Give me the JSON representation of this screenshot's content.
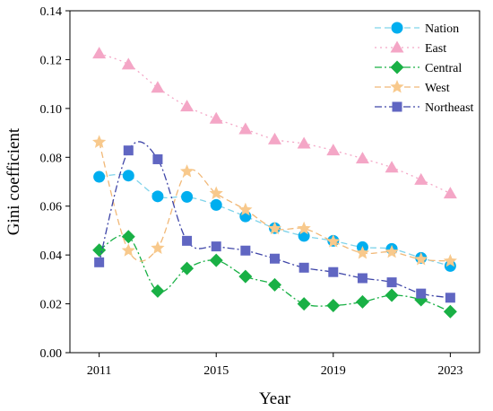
{
  "chart_data": {
    "type": "line",
    "xlabel": "Year",
    "ylabel": "Gini coefficient",
    "xlim": [
      2010,
      2024
    ],
    "ylim": [
      0,
      0.14
    ],
    "x_ticks": [
      "2011",
      "2015",
      "2019",
      "2023"
    ],
    "y_ticks": [
      "0.00",
      "0.02",
      "0.04",
      "0.06",
      "0.08",
      "0.10",
      "0.12",
      "0.14"
    ],
    "grid": false,
    "legend_position": "top-right",
    "x": [
      2011,
      2012,
      2013,
      2014,
      2015,
      2016,
      2017,
      2018,
      2019,
      2020,
      2021,
      2022,
      2023
    ],
    "series": [
      {
        "name": "Nation",
        "marker": "circle",
        "line_style": "dashed",
        "color": "#00aeef",
        "line_color": "#7fd3ea",
        "values": [
          0.072,
          0.0725,
          0.064,
          0.0638,
          0.0605,
          0.0558,
          0.051,
          0.0478,
          0.0458,
          0.0432,
          0.0425,
          0.0388,
          0.0355
        ]
      },
      {
        "name": "East",
        "marker": "triangle",
        "line_style": "dotted",
        "color": "#f4a6c6",
        "line_color": "#f4a6c6",
        "values": [
          0.1225,
          0.118,
          0.1085,
          0.1008,
          0.0958,
          0.0915,
          0.0873,
          0.0856,
          0.0828,
          0.0795,
          0.0758,
          0.0708,
          0.0652
        ]
      },
      {
        "name": "Central",
        "marker": "diamond",
        "line_style": "dash-dot",
        "color": "#19b045",
        "line_color": "#19b045",
        "values": [
          0.042,
          0.0475,
          0.0252,
          0.0345,
          0.0378,
          0.0312,
          0.0278,
          0.02,
          0.0193,
          0.0208,
          0.0235,
          0.0217,
          0.0168
        ]
      },
      {
        "name": "West",
        "marker": "star",
        "line_style": "dashed",
        "color": "#f8c98c",
        "line_color": "#f1b877",
        "values": [
          0.0862,
          0.0418,
          0.0428,
          0.0742,
          0.0652,
          0.0585,
          0.0508,
          0.0508,
          0.0455,
          0.0408,
          0.0412,
          0.0382,
          0.0375
        ]
      },
      {
        "name": "Northeast",
        "marker": "square",
        "line_style": "dash-dot",
        "color": "#6066c2",
        "line_color": "#3f46a8",
        "values": [
          0.037,
          0.0828,
          0.0792,
          0.0458,
          0.0435,
          0.0418,
          0.0385,
          0.0348,
          0.033,
          0.0305,
          0.0288,
          0.0242,
          0.0225
        ]
      }
    ]
  }
}
